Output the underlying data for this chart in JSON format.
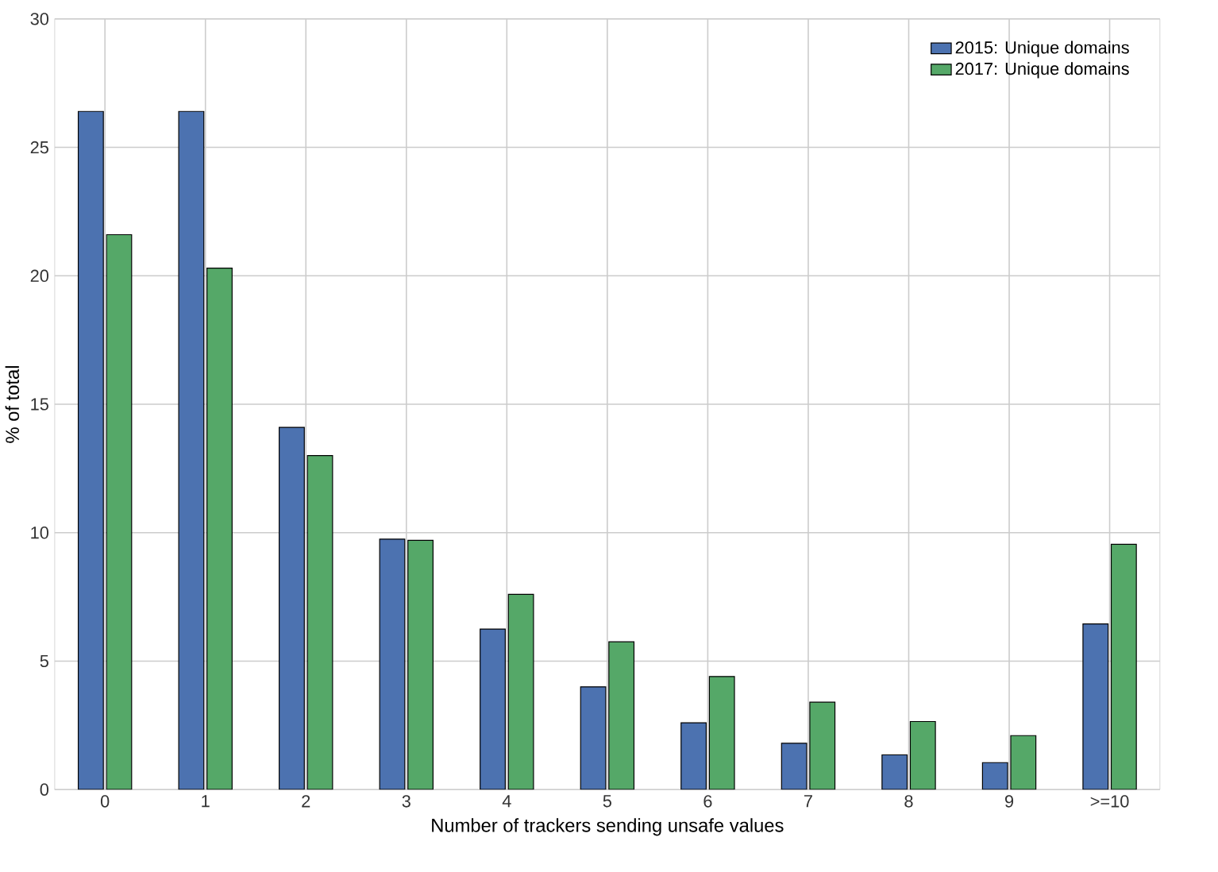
{
  "chart_data": {
    "type": "bar",
    "xlabel": "Number of trackers sending unsafe values",
    "ylabel": "% of total",
    "categories": [
      "0",
      "1",
      "2",
      "3",
      "4",
      "5",
      "6",
      "7",
      "8",
      "9",
      ">=10"
    ],
    "series": [
      {
        "name": "2015: Unique domains",
        "color": "#4c72b0",
        "values": [
          26.4,
          26.4,
          14.1,
          9.75,
          6.25,
          4.0,
          2.6,
          1.8,
          1.35,
          1.05,
          6.45
        ]
      },
      {
        "name": "2017: Unique domains",
        "color": "#55a868",
        "values": [
          21.6,
          20.3,
          13.0,
          9.7,
          7.6,
          5.75,
          4.4,
          3.4,
          2.65,
          2.1,
          9.55
        ]
      }
    ],
    "ylim": [
      0,
      30
    ],
    "yticks": [
      0,
      5,
      10,
      15,
      20,
      25,
      30
    ],
    "grid": true,
    "legend": "top right"
  }
}
